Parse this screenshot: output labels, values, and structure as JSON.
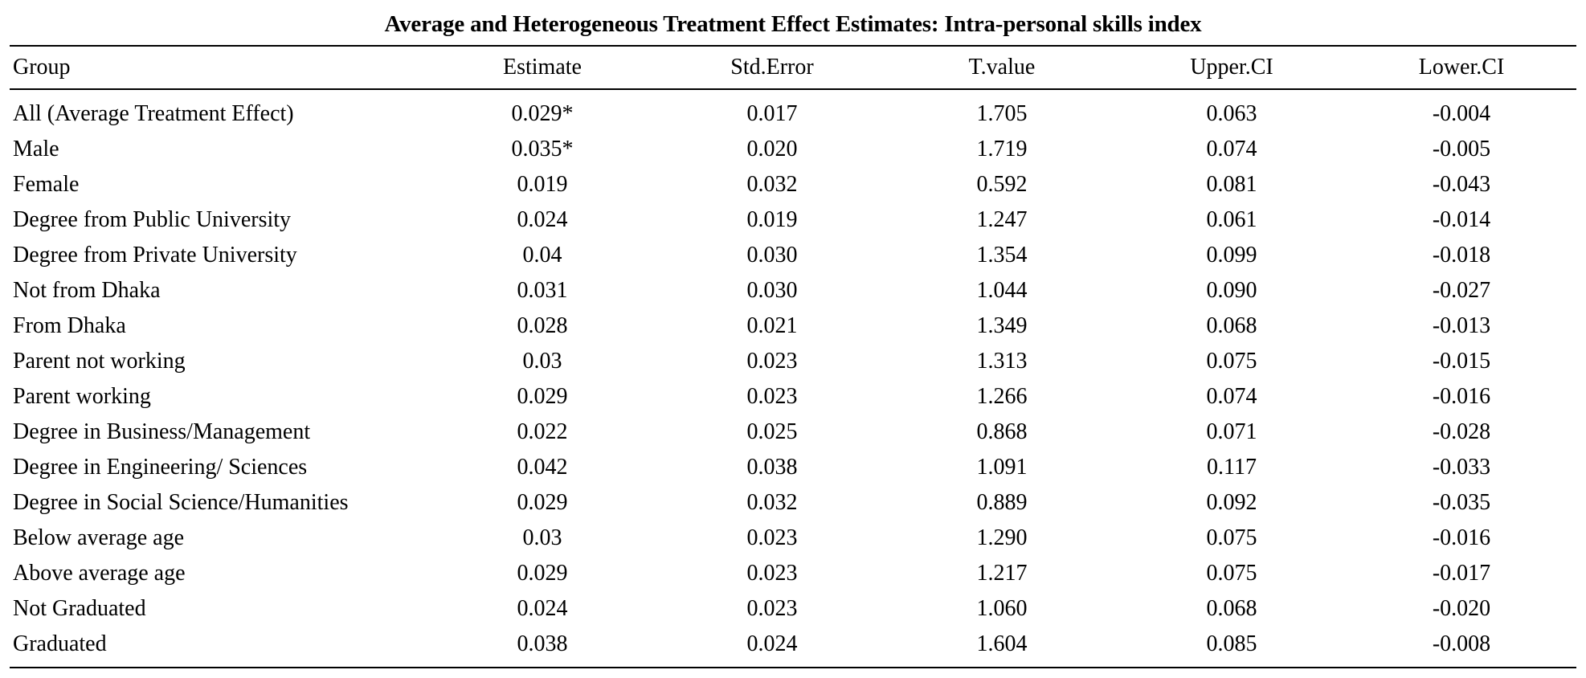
{
  "table": {
    "caption": "Average and Heterogeneous Treatment Effect Estimates: Intra-personal skills index",
    "headers": [
      "Group",
      "Estimate",
      "Std.Error",
      "T.value",
      "Upper.CI",
      "Lower.CI"
    ],
    "rows": [
      [
        "All (Average Treatment Effect)",
        "0.029*",
        "0.017",
        "1.705",
        "0.063",
        "-0.004"
      ],
      [
        "Male",
        "0.035*",
        "0.020",
        "1.719",
        "0.074",
        "-0.005"
      ],
      [
        "Female",
        "0.019",
        "0.032",
        "0.592",
        "0.081",
        "-0.043"
      ],
      [
        "Degree from Public University",
        "0.024",
        "0.019",
        "1.247",
        "0.061",
        "-0.014"
      ],
      [
        "Degree from Private University",
        "0.04",
        "0.030",
        "1.354",
        "0.099",
        "-0.018"
      ],
      [
        "Not from Dhaka",
        "0.031",
        "0.030",
        "1.044",
        "0.090",
        "-0.027"
      ],
      [
        "From Dhaka",
        "0.028",
        "0.021",
        "1.349",
        "0.068",
        "-0.013"
      ],
      [
        "Parent not working",
        "0.03",
        "0.023",
        "1.313",
        "0.075",
        "-0.015"
      ],
      [
        "Parent working",
        "0.029",
        "0.023",
        "1.266",
        "0.074",
        "-0.016"
      ],
      [
        "Degree in Business/Management",
        "0.022",
        "0.025",
        "0.868",
        "0.071",
        "-0.028"
      ],
      [
        "Degree in Engineering/ Sciences",
        "0.042",
        "0.038",
        "1.091",
        "0.117",
        "-0.033"
      ],
      [
        "Degree in Social Science/Humanities",
        "0.029",
        "0.032",
        "0.889",
        "0.092",
        "-0.035"
      ],
      [
        "Below average age",
        "0.03",
        "0.023",
        "1.290",
        "0.075",
        "-0.016"
      ],
      [
        "Above average age",
        "0.029",
        "0.023",
        "1.217",
        "0.075",
        "-0.017"
      ],
      [
        "Not Graduated",
        "0.024",
        "0.023",
        "1.060",
        "0.068",
        "-0.020"
      ],
      [
        "Graduated",
        "0.038",
        "0.024",
        "1.604",
        "0.085",
        "-0.008"
      ]
    ]
  }
}
